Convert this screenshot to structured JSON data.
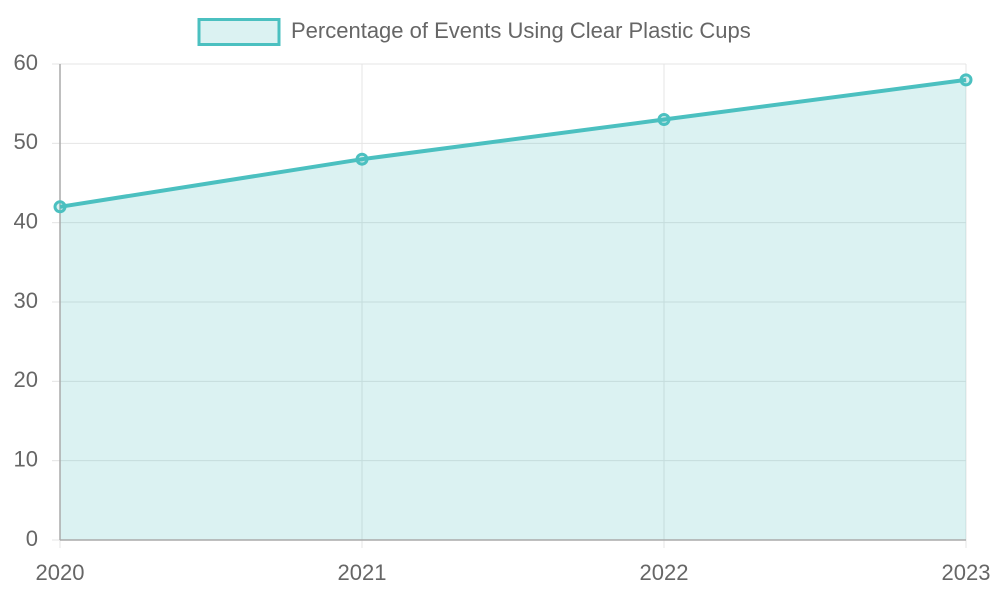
{
  "chart_data": {
    "type": "line",
    "categories": [
      "2020",
      "2021",
      "2022",
      "2023"
    ],
    "series": [
      {
        "name": "Percentage of Events Using Clear Plastic Cups",
        "color": "#4bc0c0",
        "fill": "rgba(75,192,192,0.2)",
        "values": [
          42,
          48,
          53,
          58
        ]
      }
    ],
    "ylim": [
      0,
      60
    ],
    "yticks": [
      0,
      10,
      20,
      30,
      40,
      50,
      60
    ],
    "grid": true,
    "legend": "top"
  }
}
